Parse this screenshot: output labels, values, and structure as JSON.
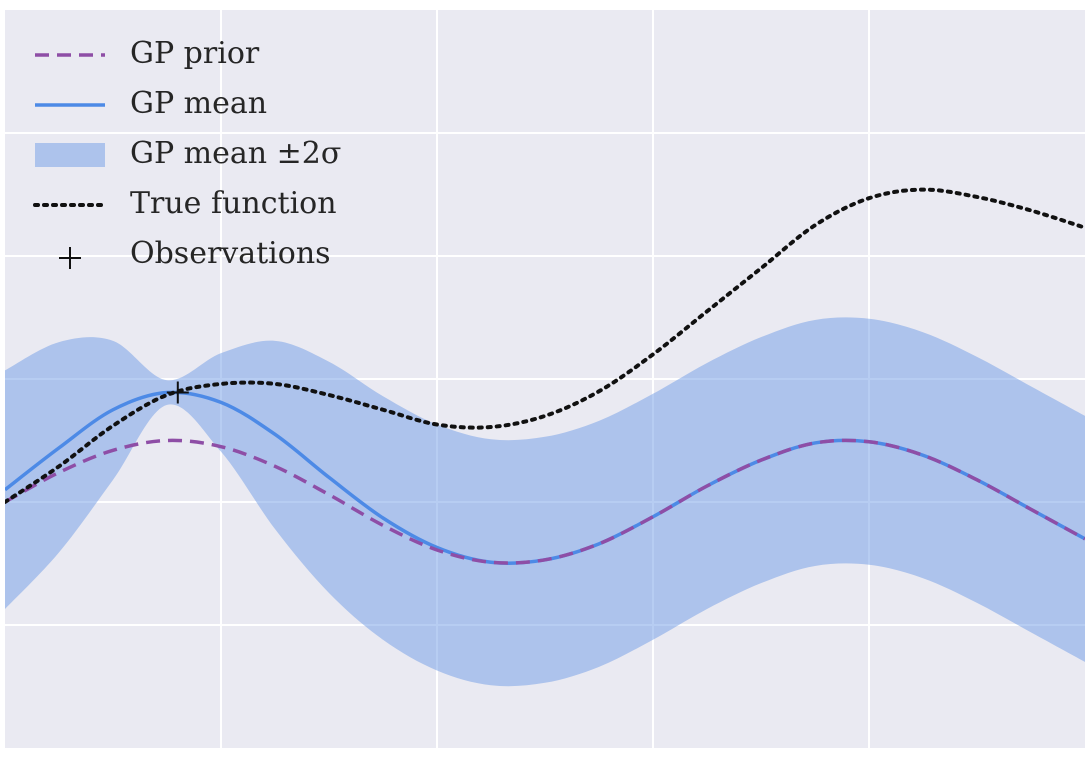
{
  "chart_data": {
    "type": "line",
    "x": [
      0,
      0.25,
      0.5,
      0.75,
      1,
      1.25,
      1.5,
      1.75,
      2,
      2.25,
      2.5,
      2.75,
      3,
      3.25,
      3.5,
      3.75,
      4,
      4.25,
      4.5,
      4.75,
      5
    ],
    "xlim": [
      0,
      5
    ],
    "xticks": [
      1,
      2,
      3,
      4
    ],
    "ylim": [
      -3,
      3
    ],
    "yticks": [
      -2,
      -1,
      0,
      1,
      2
    ],
    "grid": true,
    "legend": "upper left",
    "band": {
      "name": "GP mean ±2σ",
      "color": "#6f9be6",
      "lower": [
        -1.87,
        -1.41,
        -0.82,
        -0.21,
        -0.59,
        -1.22,
        -1.74,
        -2.12,
        -2.37,
        -2.49,
        -2.47,
        -2.34,
        -2.12,
        -1.87,
        -1.66,
        -1.52,
        -1.51,
        -1.62,
        -1.82,
        -2.06,
        -2.3
      ],
      "upper": [
        0.07,
        0.3,
        0.31,
        -0.01,
        0.21,
        0.31,
        0.14,
        -0.14,
        -0.37,
        -0.49,
        -0.47,
        -0.34,
        -0.12,
        0.13,
        0.34,
        0.48,
        0.49,
        0.38,
        0.18,
        -0.06,
        -0.3
      ]
    },
    "series": [
      {
        "name": "GP prior",
        "color": "#8e4ea6",
        "style": "dashed",
        "values": [
          -1,
          -0.76,
          -0.58,
          -0.5,
          -0.55,
          -0.71,
          -0.94,
          -1.19,
          -1.39,
          -1.49,
          -1.47,
          -1.34,
          -1.12,
          -0.87,
          -0.66,
          -0.52,
          -0.51,
          -0.62,
          -0.82,
          -1.06,
          -1.3
        ]
      },
      {
        "name": "GP mean",
        "color": "#4d8ae6",
        "style": "solid",
        "values": [
          -0.9,
          -0.56,
          -0.25,
          -0.11,
          -0.19,
          -0.45,
          -0.8,
          -1.13,
          -1.37,
          -1.49,
          -1.47,
          -1.34,
          -1.12,
          -0.87,
          -0.66,
          -0.52,
          -0.51,
          -0.62,
          -0.82,
          -1.06,
          -1.3
        ]
      },
      {
        "name": "True function",
        "color": "#111111",
        "style": "dotted",
        "values": [
          -1,
          -0.71,
          -0.38,
          -0.13,
          -0.04,
          -0.04,
          -0.13,
          -0.25,
          -0.37,
          -0.39,
          -0.3,
          -0.1,
          0.2,
          0.55,
          0.9,
          1.25,
          1.47,
          1.54,
          1.48,
          1.37,
          1.23
        ]
      }
    ],
    "observations": {
      "name": "Observations",
      "color": "#111111",
      "x": [
        0.8
      ],
      "values": [
        -0.11
      ]
    }
  }
}
